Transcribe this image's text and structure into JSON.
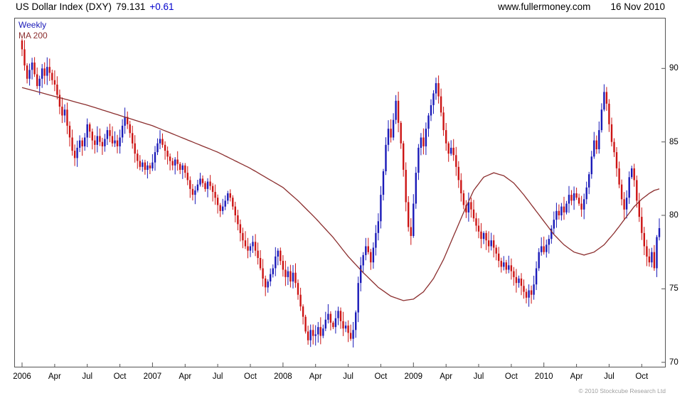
{
  "header": {
    "instrument": "US Dollar Index (DXY)",
    "last_price": "79.131",
    "change": "+0.61",
    "website": "www.fullermoney.com",
    "date": "16 Nov 2010"
  },
  "legend": {
    "frequency": "Weekly",
    "ma_label": "MA 200"
  },
  "footer": {
    "copyright": "© 2010 Stockcube Research Ltd"
  },
  "chart_data": {
    "type": "candlestick",
    "title": "US Dollar Index (DXY)",
    "frequency": "Weekly",
    "overlay": "MA 200",
    "x_range": "Jan 2006 - 16 Nov 2010",
    "ylim": [
      69.7,
      93.4
    ],
    "y_ticks": [
      90,
      85,
      80,
      75,
      70
    ],
    "x_ticks": [
      {
        "label": "2006",
        "week": 0
      },
      {
        "label": "Apr",
        "week": 13
      },
      {
        "label": "Jul",
        "week": 26
      },
      {
        "label": "Oct",
        "week": 39
      },
      {
        "label": "2007",
        "week": 52
      },
      {
        "label": "Apr",
        "week": 65
      },
      {
        "label": "Jul",
        "week": 78
      },
      {
        "label": "Oct",
        "week": 91
      },
      {
        "label": "2008",
        "week": 104
      },
      {
        "label": "Apr",
        "week": 117
      },
      {
        "label": "Jul",
        "week": 130
      },
      {
        "label": "Oct",
        "week": 143
      },
      {
        "label": "2009",
        "week": 156
      },
      {
        "label": "Apr",
        "week": 169
      },
      {
        "label": "Jul",
        "week": 182
      },
      {
        "label": "Oct",
        "week": 195
      },
      {
        "label": "2010",
        "week": 208
      },
      {
        "label": "Apr",
        "week": 221
      },
      {
        "label": "Jul",
        "week": 234
      },
      {
        "label": "Oct",
        "week": 247
      }
    ],
    "first_open": 91.9,
    "weekly_closes": [
      91.3,
      90.2,
      89.3,
      89.9,
      90.4,
      89.6,
      88.8,
      89.3,
      90.0,
      89.5,
      90.1,
      89.7,
      89.2,
      88.9,
      88.2,
      87.4,
      86.8,
      87.2,
      86.1,
      85.3,
      84.4,
      83.9,
      84.6,
      85.1,
      84.7,
      85.3,
      86.2,
      85.7,
      85.1,
      84.8,
      85.4,
      85.0,
      84.7,
      85.2,
      85.8,
      85.4,
      84.9,
      85.1,
      84.7,
      85.3,
      86.1,
      86.7,
      86.2,
      85.6,
      84.9,
      84.2,
      83.7,
      83.3,
      83.6,
      83.1,
      83.4,
      83.2,
      83.6,
      84.3,
      84.9,
      85.2,
      84.8,
      84.4,
      84.0,
      83.7,
      83.4,
      83.8,
      83.5,
      83.1,
      83.4,
      82.9,
      82.4,
      81.8,
      81.4,
      81.7,
      82.1,
      82.5,
      82.2,
      81.8,
      82.3,
      82.0,
      81.6,
      81.2,
      80.7,
      80.3,
      80.6,
      81.0,
      81.5,
      81.2,
      80.6,
      80.0,
      79.4,
      78.8,
      78.3,
      77.9,
      77.6,
      77.9,
      78.2,
      77.6,
      77.1,
      76.4,
      75.7,
      75.1,
      75.5,
      76.0,
      76.4,
      77.2,
      77.6,
      76.9,
      76.3,
      75.8,
      76.2,
      75.5,
      76.1,
      75.4,
      74.6,
      73.8,
      73.1,
      72.1,
      71.5,
      72.2,
      71.8,
      71.9,
      72.4,
      71.8,
      72.3,
      72.9,
      73.3,
      72.7,
      72.4,
      73.0,
      73.5,
      72.8,
      72.3,
      72.5,
      72.0,
      71.6,
      72.2,
      73.4,
      75.4,
      76.6,
      77.3,
      77.9,
      77.5,
      76.8,
      77.8,
      78.8,
      79.6,
      81.4,
      83.0,
      84.8,
      85.9,
      85.3,
      86.5,
      87.8,
      86.3,
      84.9,
      83.1,
      80.9,
      79.2,
      78.6,
      80.8,
      82.9,
      84.6,
      85.3,
      84.7,
      85.9,
      86.8,
      87.5,
      88.3,
      89.0,
      88.1,
      87.0,
      85.8,
      84.9,
      84.2,
      84.6,
      84.1,
      83.3,
      82.4,
      81.5,
      80.7,
      80.2,
      80.9,
      80.4,
      79.8,
      79.3,
      78.9,
      78.4,
      78.8,
      78.3,
      77.9,
      78.3,
      77.8,
      77.4,
      76.9,
      76.5,
      76.8,
      76.3,
      76.6,
      76.2,
      75.8,
      75.4,
      75.7,
      75.2,
      74.8,
      74.4,
      74.9,
      74.6,
      75.3,
      76.4,
      77.5,
      77.9,
      77.5,
      78.0,
      78.4,
      79.1,
      79.7,
      80.3,
      80.0,
      80.6,
      80.2,
      80.8,
      81.4,
      81.0,
      81.5,
      81.2,
      80.8,
      80.4,
      81.1,
      81.9,
      82.8,
      84.0,
      85.1,
      84.5,
      85.8,
      87.2,
      88.4,
      87.6,
      86.2,
      85.0,
      84.3,
      83.2,
      82.1,
      81.1,
      80.4,
      81.2,
      82.6,
      83.2,
      82.4,
      81.0,
      79.9,
      78.8,
      77.9,
      77.2,
      76.8,
      77.5,
      76.4,
      78.52,
      79.131
    ],
    "ma200_anchors": [
      [
        0,
        88.7
      ],
      [
        13,
        88.1
      ],
      [
        26,
        87.5
      ],
      [
        39,
        86.8
      ],
      [
        52,
        86.1
      ],
      [
        65,
        85.2
      ],
      [
        78,
        84.3
      ],
      [
        91,
        83.2
      ],
      [
        104,
        81.9
      ],
      [
        110,
        81.0
      ],
      [
        117,
        79.8
      ],
      [
        124,
        78.5
      ],
      [
        130,
        77.2
      ],
      [
        136,
        76.1
      ],
      [
        142,
        75.1
      ],
      [
        147,
        74.5
      ],
      [
        152,
        74.2
      ],
      [
        156,
        74.3
      ],
      [
        160,
        74.8
      ],
      [
        164,
        75.7
      ],
      [
        168,
        77.0
      ],
      [
        172,
        78.6
      ],
      [
        176,
        80.2
      ],
      [
        180,
        81.7
      ],
      [
        184,
        82.6
      ],
      [
        188,
        82.9
      ],
      [
        192,
        82.7
      ],
      [
        196,
        82.2
      ],
      [
        200,
        81.4
      ],
      [
        204,
        80.5
      ],
      [
        208,
        79.6
      ],
      [
        212,
        78.7
      ],
      [
        216,
        78.0
      ],
      [
        220,
        77.5
      ],
      [
        224,
        77.3
      ],
      [
        228,
        77.5
      ],
      [
        232,
        78.0
      ],
      [
        236,
        78.8
      ],
      [
        240,
        79.7
      ],
      [
        244,
        80.6
      ],
      [
        247,
        81.1
      ],
      [
        250,
        81.5
      ],
      [
        252,
        81.7
      ],
      [
        254,
        81.8
      ]
    ],
    "colors": {
      "up": "#1a1ab8",
      "down": "#cc1414",
      "ma": "#8b2e2e",
      "axis": "#555555"
    }
  }
}
